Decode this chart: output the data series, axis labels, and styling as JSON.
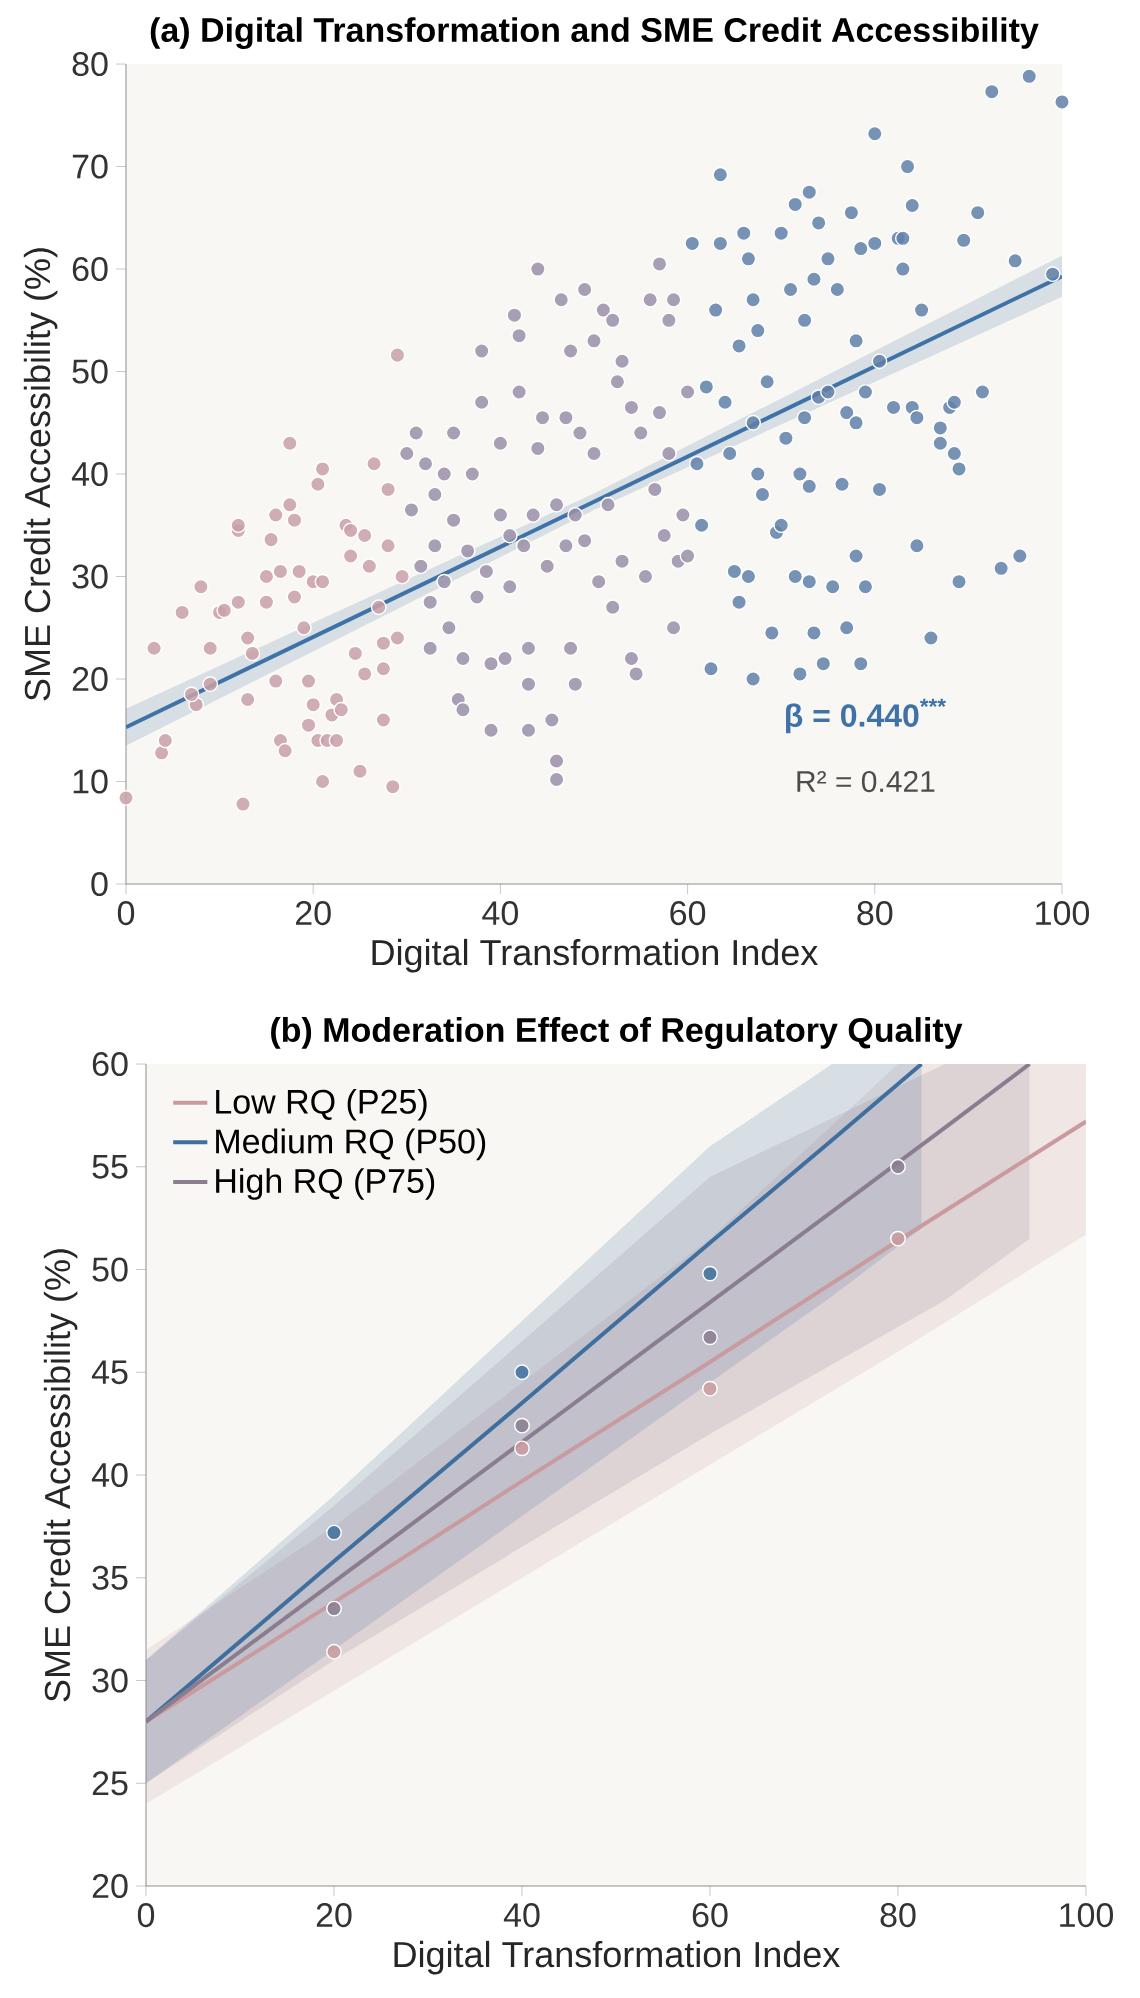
{
  "chart_data": [
    {
      "type": "scatter",
      "title": "(a) Digital Transformation and SME Credit Accessibility",
      "xlabel": "Digital Transformation Index",
      "ylabel": "SME Credit Accessibility (%)",
      "xlim": [
        0,
        100
      ],
      "ylim": [
        0,
        80
      ],
      "xticks": [
        0,
        20,
        40,
        60,
        80,
        100
      ],
      "yticks": [
        0,
        10,
        20,
        30,
        40,
        50,
        60,
        70,
        80
      ],
      "annotations": [
        "β = 0.440$^{***}$",
        "R² = 0.421"
      ],
      "series": [
        {
          "color": "#c9a0a6",
          "x": [
            0,
            3,
            3.8,
            4.2,
            6,
            8,
            7.5,
            7,
            9,
            9,
            10,
            10.5,
            12,
            12,
            12,
            12.5,
            13,
            13.5,
            13,
            15,
            15,
            15.5,
            16,
            16,
            16.5,
            17,
            16.5,
            17.5,
            17.5,
            18,
            18,
            18.5,
            19,
            19.5,
            19.5,
            20,
            20,
            20.5,
            21,
            21,
            21,
            20.5,
            21.5,
            22,
            22.5,
            22.5,
            23,
            23.5,
            24,
            24,
            24.5,
            25,
            25.5,
            25.5,
            26,
            26.5,
            27,
            27.5,
            27.5,
            27.5,
            28,
            28,
            28.5,
            29,
            29,
            29.5
          ],
          "values": [
            8.4,
            23,
            12.8,
            14,
            26.5,
            29,
            17.5,
            18.5,
            19.5,
            23,
            26.5,
            26.7,
            34.5,
            35,
            27.5,
            7.8,
            24,
            22.5,
            18,
            30,
            27.5,
            33.6,
            36,
            19.8,
            14,
            13,
            30.5,
            37,
            43,
            35.5,
            28,
            30.5,
            25,
            19.8,
            15.5,
            17.5,
            29.5,
            39,
            40.5,
            29.5,
            10,
            14,
            14,
            16.5,
            18,
            14,
            17,
            35,
            32,
            34.5,
            22.5,
            11,
            20.5,
            34,
            31,
            41,
            27,
            16,
            21,
            23.5,
            38.5,
            33,
            9.5,
            51.6,
            24,
            30
          ]
        },
        {
          "color": "#9a8fa8",
          "x": [
            30,
            30.5,
            31,
            31.5,
            32,
            32.5,
            32.5,
            33,
            33,
            34,
            34,
            34.5,
            35,
            35,
            35.5,
            36,
            36,
            36.5,
            37,
            37.5,
            38,
            38,
            38.5,
            39,
            39,
            40,
            40,
            40.5,
            41,
            41,
            41.5,
            42,
            42,
            42.5,
            43,
            43,
            43,
            43.5,
            44,
            44,
            44.5,
            45,
            45.5,
            46,
            46,
            46,
            46.5,
            47,
            47,
            47.5,
            47.5,
            48,
            48,
            48.5,
            49,
            49,
            50,
            50,
            50.5,
            51,
            51.5,
            52,
            52,
            52.5,
            53,
            53,
            54,
            54,
            54.5,
            55,
            55.5,
            56,
            56.5,
            57,
            57,
            57.5,
            58,
            58,
            58.5,
            58.5,
            59,
            59.5,
            60,
            60
          ],
          "values": [
            42,
            36.5,
            44,
            31,
            41,
            23,
            27.5,
            38,
            33,
            40,
            29.5,
            25,
            44,
            35.5,
            18,
            22,
            17,
            32.5,
            40,
            28,
            47,
            52,
            30.5,
            21.5,
            15,
            43,
            36,
            22,
            34,
            29,
            55.5,
            53.5,
            48,
            33,
            23,
            19.5,
            15,
            36,
            60,
            42.5,
            45.5,
            31,
            16,
            12,
            10.2,
            37,
            57,
            45.5,
            33,
            52,
            23,
            36,
            19.5,
            44,
            58,
            33.5,
            53,
            42,
            29.5,
            56,
            37,
            55,
            27,
            49,
            31.5,
            51,
            46.5,
            22,
            20.5,
            44,
            30,
            57,
            38.5,
            46,
            60.5,
            34,
            55,
            42,
            57,
            25,
            31.5,
            36,
            48,
            32
          ]
        },
        {
          "color": "#5f80a8",
          "x": [
            60.5,
            61,
            61.5,
            62,
            62.5,
            63,
            63.5,
            63.5,
            64,
            64.5,
            65,
            65.5,
            65.5,
            66,
            66.5,
            66.5,
            67,
            67,
            67,
            67.5,
            67.5,
            68,
            68.5,
            69,
            69.5,
            70,
            70,
            70.5,
            71,
            71.5,
            71.5,
            72,
            72,
            72.5,
            72.5,
            73,
            73,
            73,
            73.5,
            73.5,
            74,
            74,
            74.5,
            75,
            75,
            75.5,
            76,
            76.5,
            77,
            77,
            77.5,
            78,
            78,
            78,
            78.5,
            78.5,
            79,
            79,
            80,
            80,
            80.5,
            80.5,
            82,
            82.5,
            83,
            83,
            83.5,
            84,
            84,
            84.5,
            84.5,
            85,
            86,
            87,
            87,
            88,
            88.5,
            88.5,
            89,
            89,
            89.5,
            91,
            91.5,
            92.5,
            93.5,
            95,
            95.5,
            96.5,
            99,
            100
          ],
          "values": [
            62.5,
            41,
            35,
            48.5,
            21,
            56,
            69.2,
            62.5,
            47,
            42,
            30.5,
            27.5,
            52.5,
            63.5,
            61,
            30,
            57,
            45,
            20,
            54,
            40,
            38,
            49,
            24.5,
            34.3,
            63.5,
            35,
            43.5,
            58,
            66.3,
            30,
            40,
            20.5,
            55,
            45.5,
            67.5,
            38.8,
            29.5,
            59,
            24.5,
            64.5,
            47.5,
            21.5,
            61,
            48,
            29,
            58,
            39,
            46,
            25,
            65.5,
            32,
            53,
            45,
            62,
            21.5,
            48,
            29,
            73.2,
            62.5,
            51,
            38.5,
            46.5,
            63,
            63,
            60,
            70,
            66.2,
            46.5,
            45.5,
            33,
            56,
            24,
            44.5,
            43,
            46.5,
            47,
            42,
            40.5,
            29.5,
            62.8,
            65.5,
            48,
            77.3,
            30.8,
            60.8,
            32,
            78.8,
            59.5,
            76.3
          ]
        },
        {
          "type": "line",
          "color": "#3f73a8",
          "x": [
            0,
            50,
            100
          ],
          "values": [
            15.3,
            37.3,
            59.3
          ],
          "lower": [
            13.5,
            36.5,
            57.3
          ],
          "upper": [
            17.1,
            38.1,
            61.3
          ]
        }
      ]
    },
    {
      "type": "line",
      "title": "(b) Moderation Effect of Regulatory Quality",
      "xlabel": "Digital Transformation Index",
      "ylabel": "SME Credit Accessibility (%)",
      "xlim": [
        0,
        100
      ],
      "ylim": [
        20,
        60
      ],
      "xticks": [
        0,
        20,
        40,
        60,
        80,
        100
      ],
      "yticks": [
        20,
        25,
        30,
        35,
        40,
        45,
        50,
        55,
        60
      ],
      "legend": "top left",
      "series": [
        {
          "name": "Low RQ (P25)",
          "color": "#c99a9e",
          "x": [
            0,
            20,
            40,
            60,
            80,
            100
          ],
          "values": [
            28,
            33.8,
            39.7,
            45.5,
            51.4,
            57.2
          ],
          "lower": [
            24,
            29.5,
            35,
            40.5,
            46,
            51.7
          ],
          "upper": [
            31.5,
            37.5,
            44.5,
            51.5,
            60,
            60
          ]
        },
        {
          "name": "Medium RQ (P50)",
          "color": "#3e6f9e",
          "x": [
            0,
            20,
            40,
            60,
            73,
            82.5
          ],
          "values": [
            28,
            35.8,
            43.5,
            51.3,
            56.3,
            60
          ],
          "lower": [
            25,
            31.5,
            38,
            44.5,
            48.7,
            52
          ],
          "upper": [
            31,
            39,
            47.5,
            56,
            60,
            60
          ]
        },
        {
          "name": "High RQ (P75)",
          "color": "#8a7d8f",
          "x": [
            0,
            20,
            40,
            60,
            85,
            94
          ],
          "values": [
            28,
            34.8,
            41.6,
            48.4,
            56.9,
            60
          ],
          "lower": [
            25,
            31,
            36.5,
            42,
            48.5,
            51.5
          ],
          "upper": [
            31,
            38.5,
            46.5,
            54.5,
            60,
            60
          ]
        },
        {
          "type": "scatter",
          "color": "#c99a9e",
          "x": [
            20,
            40,
            60,
            80
          ],
          "values": [
            31.4,
            41.3,
            44.2,
            51.5
          ]
        },
        {
          "type": "scatter",
          "color": "#3e6f9e",
          "x": [
            20,
            40,
            60
          ],
          "values": [
            37.2,
            45.0,
            49.8
          ]
        },
        {
          "type": "scatter",
          "color": "#8a7d8f",
          "x": [
            20,
            40,
            60,
            80
          ],
          "values": [
            33.5,
            42.4,
            46.7,
            55.0
          ]
        }
      ]
    }
  ]
}
